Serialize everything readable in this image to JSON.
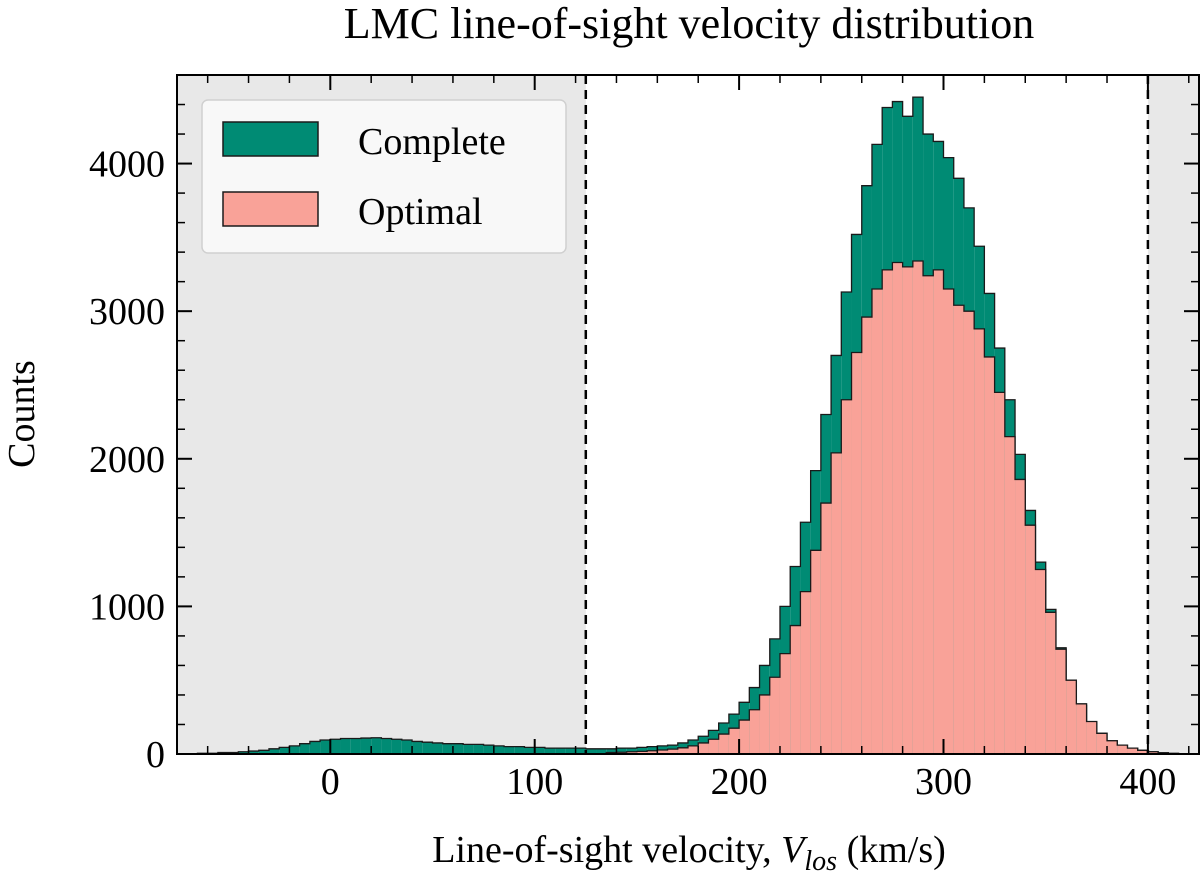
{
  "chart_data": {
    "type": "histogram",
    "title": "LMC line-of-sight velocity distribution",
    "xlabel_main": "Line-of-sight velocity, ",
    "xlabel_symbol": "V",
    "xlabel_subscript": "los",
    "xlabel_unit": " (km/s)",
    "ylabel": "Counts",
    "xlim": [
      -75,
      425
    ],
    "ylim": [
      0,
      4600
    ],
    "xticks": [
      0,
      100,
      200,
      300,
      400
    ],
    "xtick_labels": [
      "0",
      "100",
      "200",
      "300",
      "400"
    ],
    "yticks": [
      0,
      1000,
      2000,
      3000,
      4000
    ],
    "ytick_labels": [
      "0",
      "1000",
      "2000",
      "3000",
      "4000"
    ],
    "bin_start": -70,
    "bin_width": 5,
    "selection_cuts": [
      125,
      400
    ],
    "shaded_outside_cuts": true,
    "legend_position": "top-left",
    "colors": {
      "complete": "#008b74",
      "optimal": "#f9a298",
      "shade": "#e8e8e8",
      "edge": "#1a1a1a"
    },
    "series": [
      {
        "name": "Complete",
        "values": [
          0,
          5,
          5,
          10,
          10,
          15,
          20,
          25,
          35,
          45,
          55,
          70,
          85,
          95,
          100,
          105,
          105,
          108,
          110,
          105,
          100,
          95,
          85,
          80,
          75,
          70,
          70,
          65,
          65,
          60,
          55,
          50,
          50,
          45,
          45,
          40,
          40,
          40,
          40,
          35,
          35,
          35,
          40,
          40,
          45,
          50,
          55,
          60,
          75,
          95,
          120,
          160,
          210,
          270,
          350,
          450,
          600,
          780,
          1000,
          1270,
          1570,
          1920,
          2300,
          2700,
          3130,
          3520,
          3850,
          4130,
          4380,
          4420,
          4320,
          4450,
          4200,
          4150,
          4040,
          3900,
          3700,
          3440,
          3120,
          2750,
          2400,
          2030,
          1650,
          1300,
          980,
          720,
          500,
          330,
          210,
          140,
          90,
          60,
          40,
          25,
          15,
          8,
          4,
          2,
          1,
          0
        ]
      },
      {
        "name": "Optimal",
        "values": [
          0,
          0,
          0,
          0,
          0,
          0,
          0,
          0,
          0,
          0,
          0,
          0,
          0,
          0,
          0,
          0,
          0,
          0,
          0,
          0,
          0,
          0,
          0,
          0,
          0,
          0,
          0,
          0,
          0,
          0,
          0,
          0,
          0,
          0,
          0,
          0,
          0,
          0,
          0,
          0,
          0,
          10,
          12,
          15,
          18,
          22,
          27,
          33,
          42,
          55,
          75,
          100,
          135,
          175,
          230,
          300,
          400,
          520,
          680,
          870,
          1100,
          1380,
          1700,
          2040,
          2400,
          2720,
          2960,
          3150,
          3280,
          3330,
          3300,
          3340,
          3240,
          3280,
          3150,
          3040,
          3000,
          2880,
          2690,
          2450,
          2150,
          1860,
          1550,
          1250,
          960,
          710,
          500,
          340,
          220,
          140,
          90,
          60,
          40,
          25,
          15,
          8,
          4,
          2,
          1,
          0
        ]
      }
    ]
  }
}
